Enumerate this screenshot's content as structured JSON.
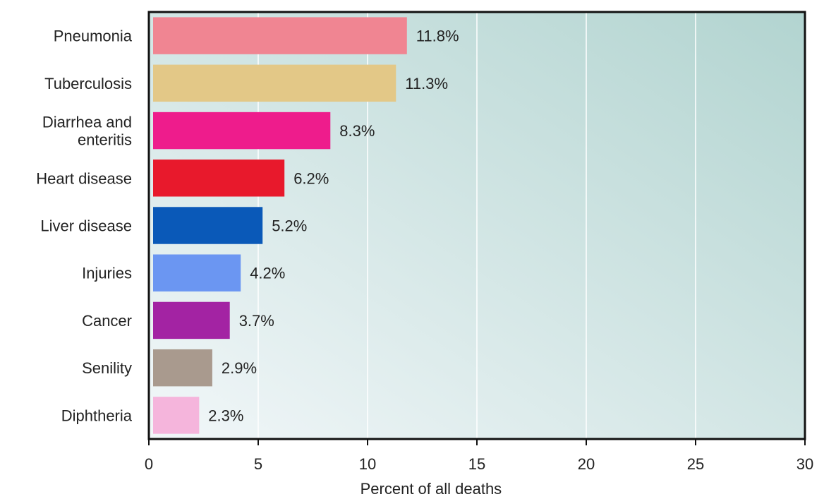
{
  "chart_data": {
    "type": "bar",
    "orientation": "horizontal",
    "categories": [
      "Pneumonia",
      "Tuberculosis",
      "Diarrhea and enteritis",
      "Heart disease",
      "Liver disease",
      "Injuries",
      "Cancer",
      "Senility",
      "Diphtheria"
    ],
    "category_lines": [
      [
        "Pneumonia"
      ],
      [
        "Tuberculosis"
      ],
      [
        "Diarrhea and",
        "enteritis"
      ],
      [
        "Heart disease"
      ],
      [
        "Liver disease"
      ],
      [
        "Injuries"
      ],
      [
        "Cancer"
      ],
      [
        "Senility"
      ],
      [
        "Diphtheria"
      ]
    ],
    "values": [
      11.8,
      11.3,
      8.3,
      6.2,
      5.2,
      4.2,
      3.7,
      2.9,
      2.3
    ],
    "value_labels": [
      "11.8%",
      "11.3%",
      "8.3%",
      "6.2%",
      "5.2%",
      "4.2%",
      "3.7%",
      "2.9%",
      "2.3%"
    ],
    "colors": [
      "#f08592",
      "#e3c887",
      "#ee1c8c",
      "#e8192c",
      "#0a59b8",
      "#6b96f2",
      "#a323a3",
      "#a99a8e",
      "#f5b5dc"
    ],
    "xlabel": "Percent of all deaths",
    "ylabel": "",
    "xlim": [
      0,
      30
    ],
    "xticks": [
      0,
      5,
      10,
      15,
      20,
      25,
      30
    ],
    "xtick_labels": [
      "0",
      "5",
      "10",
      "15",
      "20",
      "25",
      "30"
    ],
    "grid": true,
    "background_gradient": [
      "#b2d4d0",
      "#f2f7f9"
    ]
  }
}
